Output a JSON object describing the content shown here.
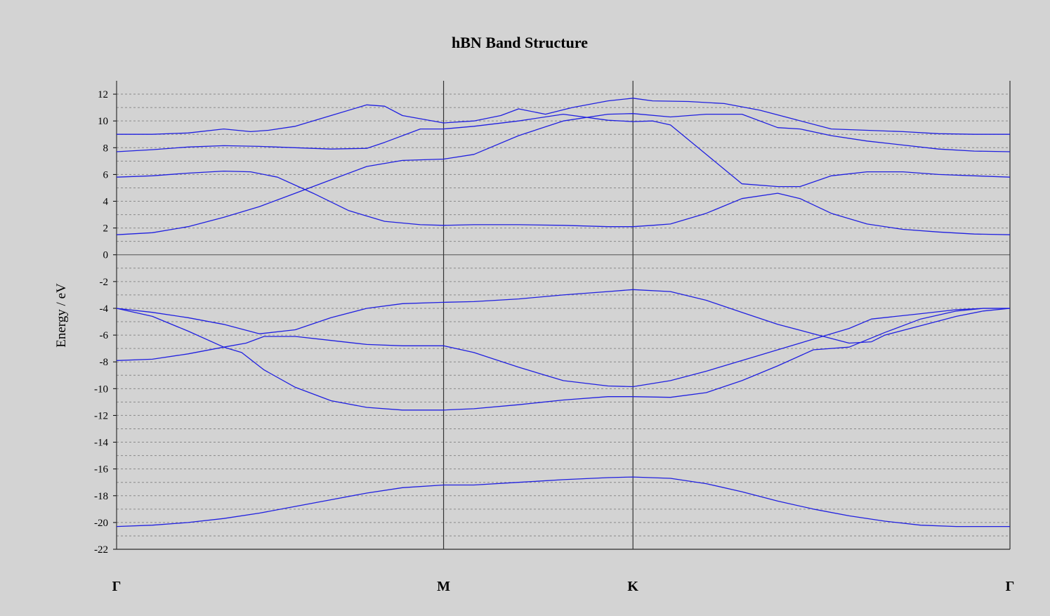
{
  "chart_data": {
    "type": "line",
    "title": "hBN Band Structure",
    "ylabel": "Energy / eV",
    "xlabel": "",
    "ylim": [
      -22,
      13
    ],
    "yticks": [
      12,
      10,
      8,
      6,
      4,
      2,
      0,
      -2,
      -4,
      -6,
      -8,
      -10,
      -12,
      -14,
      -16,
      -18,
      -20,
      -22
    ],
    "grid": true,
    "high_symmetry_points": [
      {
        "label": "Γ",
        "x": 0
      },
      {
        "label": "M",
        "x": 0.366
      },
      {
        "label": "K",
        "x": 0.578
      },
      {
        "label": "Γ",
        "x": 1
      }
    ],
    "line_color": "#2020e0",
    "series": [
      {
        "x": [
          0,
          0.04,
          0.08,
          0.12,
          0.16,
          0.2,
          0.24,
          0.28,
          0.32,
          0.366,
          0.4,
          0.45,
          0.5,
          0.55,
          0.578,
          0.62,
          0.66,
          0.7,
          0.74,
          0.78,
          0.82,
          0.86,
          0.9,
          0.94,
          1
        ],
        "values": [
          -20.3,
          -20.2,
          -20.0,
          -19.7,
          -19.3,
          -18.8,
          -18.3,
          -17.8,
          -17.4,
          -17.2,
          -17.2,
          -17.0,
          -16.8,
          -16.65,
          -16.6,
          -16.7,
          -17.1,
          -17.7,
          -18.4,
          -19.0,
          -19.5,
          -19.9,
          -20.2,
          -20.3,
          -20.3
        ]
      },
      {
        "x": [
          0,
          0.04,
          0.08,
          0.12,
          0.14,
          0.165,
          0.2,
          0.24,
          0.28,
          0.32,
          0.366,
          0.4,
          0.45,
          0.5,
          0.55,
          0.578,
          0.62,
          0.66,
          0.7,
          0.74,
          0.78,
          0.82,
          0.86,
          0.9,
          0.94,
          0.97,
          1
        ],
        "values": [
          -4.0,
          -4.6,
          -5.7,
          -6.9,
          -7.3,
          -8.6,
          -9.9,
          -10.9,
          -11.4,
          -11.6,
          -11.6,
          -11.5,
          -11.2,
          -10.85,
          -10.6,
          -10.6,
          -10.65,
          -10.3,
          -9.4,
          -8.3,
          -7.1,
          -6.9,
          -5.8,
          -4.8,
          -4.2,
          -4.0,
          -4.0
        ]
      },
      {
        "x": [
          0,
          0.04,
          0.08,
          0.12,
          0.145,
          0.165,
          0.2,
          0.24,
          0.28,
          0.32,
          0.366,
          0.4,
          0.45,
          0.5,
          0.55,
          0.578,
          0.62,
          0.66,
          0.7,
          0.74,
          0.78,
          0.82,
          0.845,
          0.9,
          0.94,
          0.97,
          1
        ],
        "values": [
          -7.9,
          -7.8,
          -7.4,
          -6.9,
          -6.6,
          -6.1,
          -6.1,
          -6.4,
          -6.7,
          -6.8,
          -6.8,
          -7.3,
          -8.4,
          -9.4,
          -9.8,
          -9.85,
          -9.4,
          -8.7,
          -7.9,
          -7.1,
          -6.3,
          -5.5,
          -4.8,
          -4.4,
          -4.1,
          -4.0,
          -4.0
        ]
      },
      {
        "x": [
          0,
          0.04,
          0.08,
          0.12,
          0.16,
          0.2,
          0.24,
          0.28,
          0.32,
          0.366,
          0.4,
          0.45,
          0.5,
          0.55,
          0.578,
          0.62,
          0.66,
          0.7,
          0.74,
          0.78,
          0.82,
          0.845,
          0.86,
          0.9,
          0.94,
          0.97,
          1
        ],
        "values": [
          -4.0,
          -4.3,
          -4.7,
          -5.2,
          -5.9,
          -5.6,
          -4.7,
          -4.0,
          -3.65,
          -3.55,
          -3.5,
          -3.3,
          -3.0,
          -2.75,
          -2.6,
          -2.75,
          -3.4,
          -4.3,
          -5.2,
          -5.9,
          -6.6,
          -6.5,
          -6.0,
          -5.3,
          -4.6,
          -4.2,
          -4.0
        ]
      },
      {
        "x": [
          0,
          0.04,
          0.08,
          0.12,
          0.16,
          0.2,
          0.24,
          0.28,
          0.32,
          0.366,
          0.4,
          0.45,
          0.5,
          0.55,
          0.578,
          0.62,
          0.66,
          0.7,
          0.74,
          0.765,
          0.8,
          0.84,
          0.88,
          0.92,
          0.96,
          1
        ],
        "values": [
          1.5,
          1.65,
          2.1,
          2.8,
          3.6,
          4.6,
          5.6,
          6.6,
          7.05,
          7.15,
          7.5,
          8.9,
          10.0,
          10.5,
          10.55,
          10.3,
          10.5,
          10.5,
          9.5,
          9.4,
          8.9,
          8.5,
          8.2,
          7.9,
          7.75,
          7.7
        ]
      },
      {
        "x": [
          0,
          0.04,
          0.08,
          0.12,
          0.15,
          0.18,
          0.22,
          0.26,
          0.3,
          0.34,
          0.366,
          0.4,
          0.45,
          0.5,
          0.55,
          0.578,
          0.6,
          0.62,
          0.66,
          0.7,
          0.74,
          0.765,
          0.8,
          0.84,
          0.88,
          0.92,
          0.96,
          1
        ],
        "values": [
          5.8,
          5.9,
          6.1,
          6.25,
          6.2,
          5.8,
          4.6,
          3.3,
          2.5,
          2.25,
          2.2,
          2.25,
          2.25,
          2.2,
          2.1,
          2.1,
          2.2,
          2.3,
          3.1,
          4.2,
          4.6,
          4.2,
          3.1,
          2.3,
          1.9,
          1.7,
          1.55,
          1.5
        ]
      },
      {
        "x": [
          0,
          0.04,
          0.08,
          0.12,
          0.16,
          0.2,
          0.24,
          0.28,
          0.3,
          0.34,
          0.366,
          0.4,
          0.45,
          0.5,
          0.55,
          0.578,
          0.6,
          0.62,
          0.66,
          0.7,
          0.74,
          0.765,
          0.8,
          0.84,
          0.88,
          0.92,
          0.96,
          1
        ],
        "values": [
          7.7,
          7.85,
          8.05,
          8.15,
          8.1,
          8.0,
          7.9,
          7.95,
          8.4,
          9.4,
          9.4,
          9.6,
          10.0,
          10.5,
          10.05,
          9.95,
          10.0,
          9.7,
          7.5,
          5.3,
          5.1,
          5.1,
          5.9,
          6.2,
          6.2,
          6.0,
          5.9,
          5.8
        ]
      },
      {
        "x": [
          0,
          0.04,
          0.08,
          0.12,
          0.15,
          0.17,
          0.2,
          0.24,
          0.28,
          0.3,
          0.32,
          0.366,
          0.4,
          0.43,
          0.45,
          0.48,
          0.51,
          0.55,
          0.578,
          0.6,
          0.64,
          0.68,
          0.72,
          0.76,
          0.8,
          0.84,
          0.88,
          0.92,
          0.96,
          1
        ],
        "values": [
          9.0,
          9.0,
          9.1,
          9.4,
          9.2,
          9.3,
          9.6,
          10.4,
          11.2,
          11.1,
          10.4,
          9.85,
          10.0,
          10.4,
          10.9,
          10.5,
          11.0,
          11.5,
          11.7,
          11.5,
          11.45,
          11.3,
          10.8,
          10.1,
          9.4,
          9.3,
          9.2,
          9.05,
          9.0,
          9.0
        ]
      }
    ]
  }
}
